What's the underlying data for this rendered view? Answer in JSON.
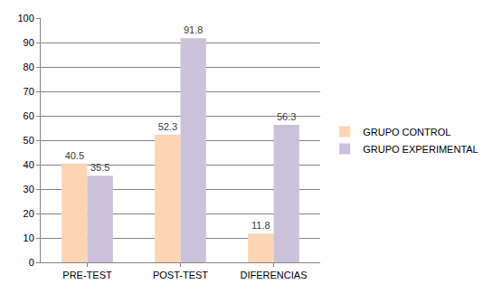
{
  "chart_data": {
    "type": "bar",
    "categories": [
      "PRE-TEST",
      "POST-TEST",
      "DIFERENCIAS"
    ],
    "series": [
      {
        "name": "GRUPO CONTROL",
        "color": "#fcd5b5",
        "values": [
          40.5,
          52.3,
          11.8
        ]
      },
      {
        "name": "GRUPO EXPERIMENTAL",
        "color": "#ccc1da",
        "values": [
          35.5,
          91.8,
          56.3
        ]
      }
    ],
    "ylim": [
      0,
      100
    ],
    "yticks": [
      0,
      10,
      20,
      30,
      40,
      50,
      60,
      70,
      80,
      90,
      100
    ],
    "grid": true,
    "legend": "right",
    "data_labels": true
  }
}
